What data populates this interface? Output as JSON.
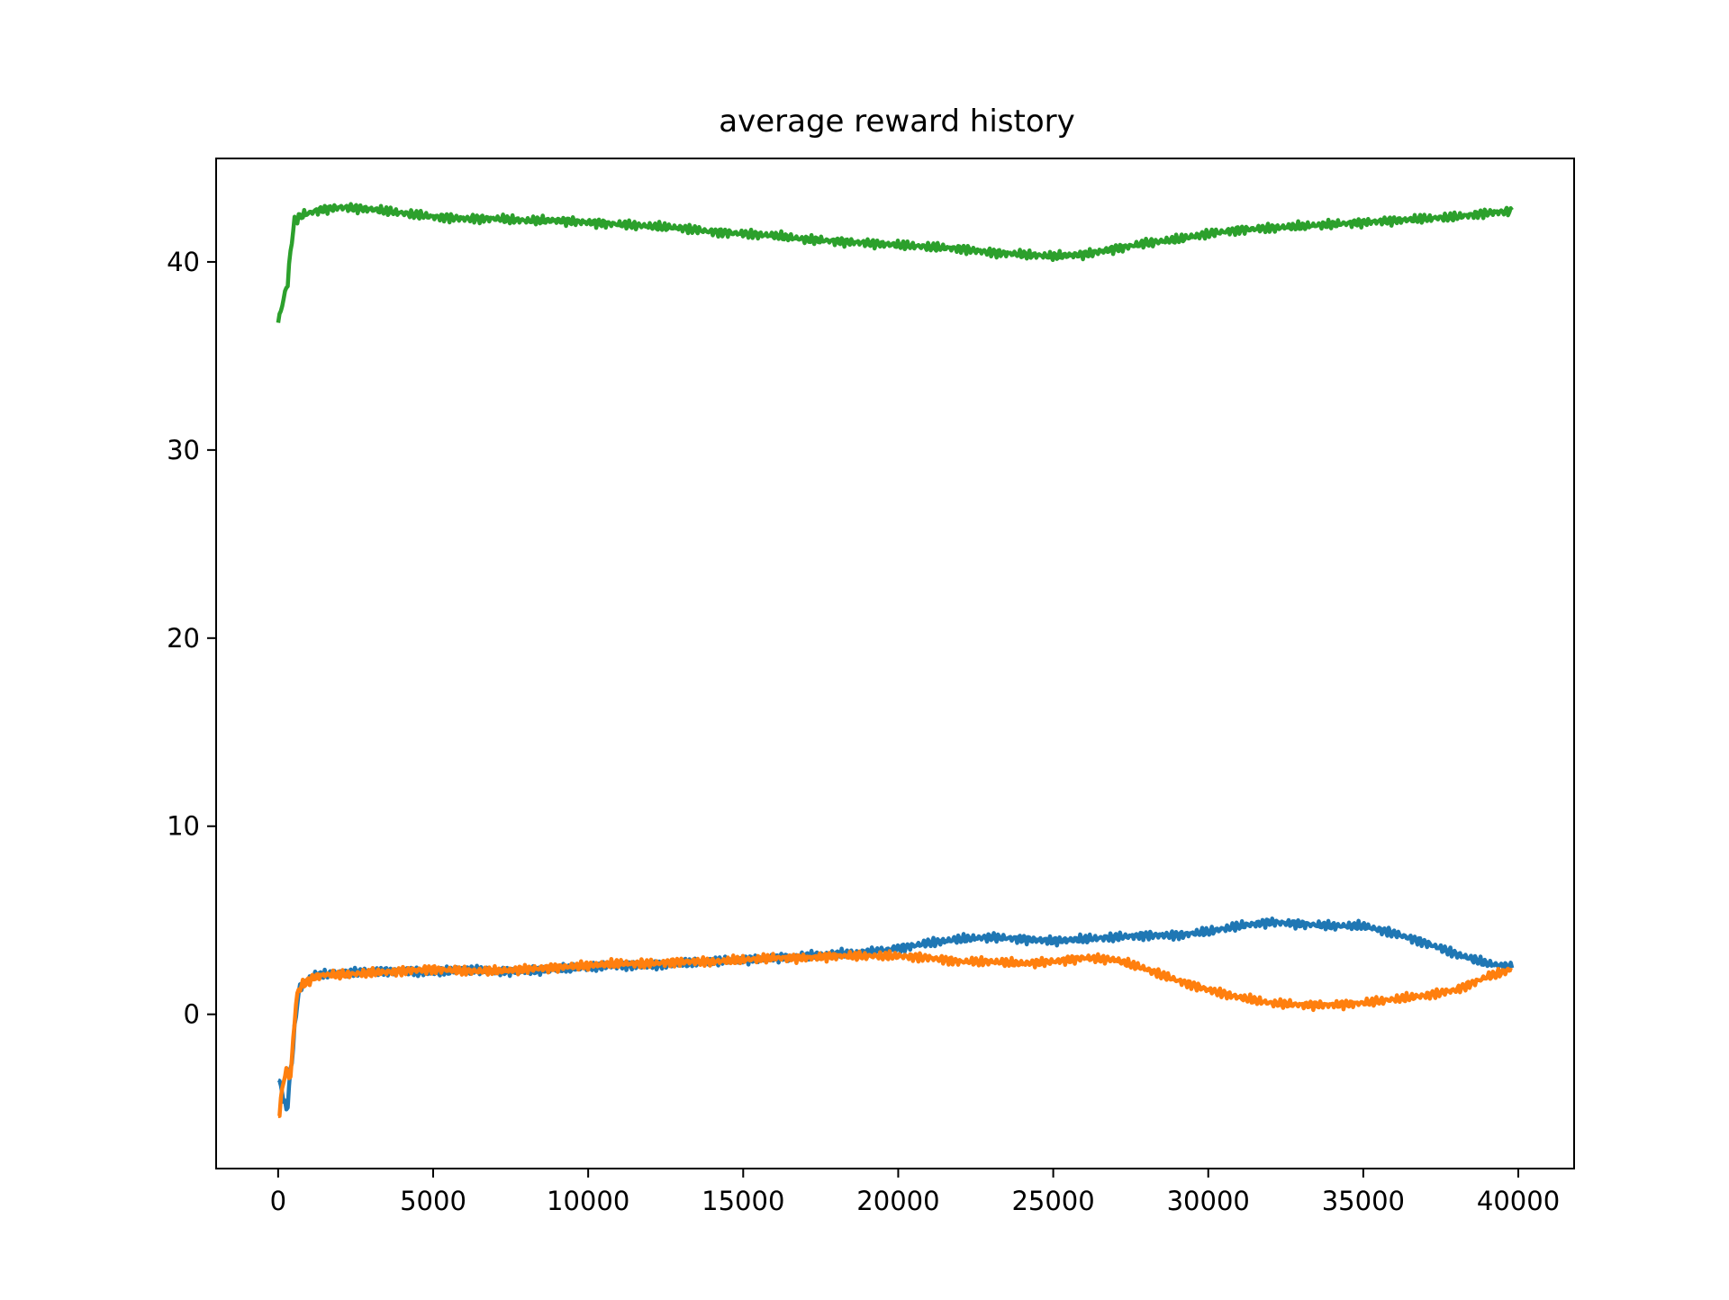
{
  "chart_data": {
    "type": "line",
    "title": "average reward history",
    "xlabel": "",
    "ylabel": "",
    "xlim": [
      -2000,
      41800
    ],
    "ylim": [
      -8.2,
      45.5
    ],
    "xticks": [
      0,
      5000,
      10000,
      15000,
      20000,
      25000,
      30000,
      35000,
      40000
    ],
    "xtick_labels": [
      "0",
      "5000",
      "10000",
      "15000",
      "20000",
      "25000",
      "30000",
      "35000",
      "40000"
    ],
    "yticks": [
      0,
      10,
      20,
      30,
      40
    ],
    "ytick_labels": [
      "0",
      "10",
      "20",
      "30",
      "40"
    ],
    "grid": false,
    "legend": "none",
    "series": [
      {
        "color": "#1f77b4",
        "x": [
          0,
          100,
          200,
          300,
          400,
          500,
          600,
          700,
          800,
          1000,
          1200,
          1500,
          2000,
          3000,
          4000,
          5000,
          6000,
          7000,
          8000,
          9000,
          10000,
          11000,
          12000,
          13000,
          14000,
          15000,
          16000,
          17000,
          18000,
          19000,
          20000,
          21000,
          22000,
          23000,
          24000,
          25000,
          26000,
          27000,
          28000,
          29000,
          30000,
          31000,
          32000,
          33000,
          34000,
          35000,
          36000,
          37000,
          38000,
          39000,
          39800
        ],
        "y": [
          -3.5,
          -3.8,
          -4.8,
          -5.0,
          -3.0,
          -1.5,
          0.5,
          1.4,
          1.6,
          1.9,
          2.1,
          2.1,
          2.2,
          2.3,
          2.3,
          2.2,
          2.4,
          2.3,
          2.3,
          2.4,
          2.5,
          2.6,
          2.6,
          2.7,
          2.8,
          2.9,
          3.0,
          3.1,
          3.2,
          3.3,
          3.5,
          3.8,
          4.0,
          4.1,
          4.0,
          3.9,
          4.0,
          4.1,
          4.2,
          4.2,
          4.4,
          4.7,
          4.9,
          4.8,
          4.7,
          4.7,
          4.3,
          3.8,
          3.2,
          2.7,
          2.5
        ]
      },
      {
        "color": "#ff7f0e",
        "x": [
          0,
          100,
          200,
          300,
          400,
          500,
          600,
          700,
          800,
          1000,
          1200,
          1500,
          2000,
          3000,
          4000,
          5000,
          6000,
          7000,
          8000,
          9000,
          10000,
          11000,
          12000,
          13000,
          14000,
          15000,
          16000,
          17000,
          18000,
          19000,
          20000,
          21000,
          22000,
          23000,
          24000,
          25000,
          26000,
          27000,
          28000,
          29000,
          30000,
          31000,
          32000,
          33000,
          34000,
          35000,
          36000,
          37000,
          38000,
          39000,
          39800
        ],
        "y": [
          -5.5,
          -4.5,
          -3.2,
          -3.0,
          -3.4,
          -1.0,
          1.0,
          1.4,
          1.6,
          1.8,
          2.0,
          2.1,
          2.1,
          2.2,
          2.3,
          2.4,
          2.3,
          2.3,
          2.4,
          2.5,
          2.6,
          2.7,
          2.7,
          2.8,
          2.8,
          2.9,
          3.0,
          3.0,
          3.1,
          3.1,
          3.1,
          3.0,
          2.8,
          2.8,
          2.7,
          2.8,
          3.0,
          2.9,
          2.4,
          1.8,
          1.3,
          0.9,
          0.6,
          0.5,
          0.5,
          0.6,
          0.8,
          1.0,
          1.3,
          2.0,
          2.4
        ]
      },
      {
        "color": "#2ca02c",
        "x": [
          0,
          100,
          200,
          300,
          400,
          500,
          600,
          700,
          800,
          1000,
          1200,
          1500,
          2000,
          3000,
          4000,
          5000,
          6000,
          7000,
          8000,
          9000,
          10000,
          11000,
          12000,
          13000,
          14000,
          15000,
          16000,
          17000,
          18000,
          19000,
          20000,
          21000,
          22000,
          23000,
          24000,
          25000,
          26000,
          27000,
          28000,
          29000,
          30000,
          31000,
          32000,
          33000,
          34000,
          35000,
          36000,
          37000,
          38000,
          39000,
          39800
        ],
        "y": [
          36.8,
          37.5,
          38.2,
          38.8,
          40.5,
          42.0,
          42.3,
          42.4,
          42.5,
          42.6,
          42.7,
          42.8,
          42.9,
          42.8,
          42.6,
          42.4,
          42.3,
          42.3,
          42.2,
          42.2,
          42.1,
          42.0,
          41.9,
          41.8,
          41.6,
          41.5,
          41.4,
          41.2,
          41.1,
          41.0,
          40.9,
          40.8,
          40.7,
          40.5,
          40.4,
          40.3,
          40.4,
          40.7,
          41.0,
          41.2,
          41.5,
          41.7,
          41.8,
          41.9,
          42.0,
          42.1,
          42.2,
          42.3,
          42.4,
          42.6,
          42.7
        ]
      }
    ]
  }
}
